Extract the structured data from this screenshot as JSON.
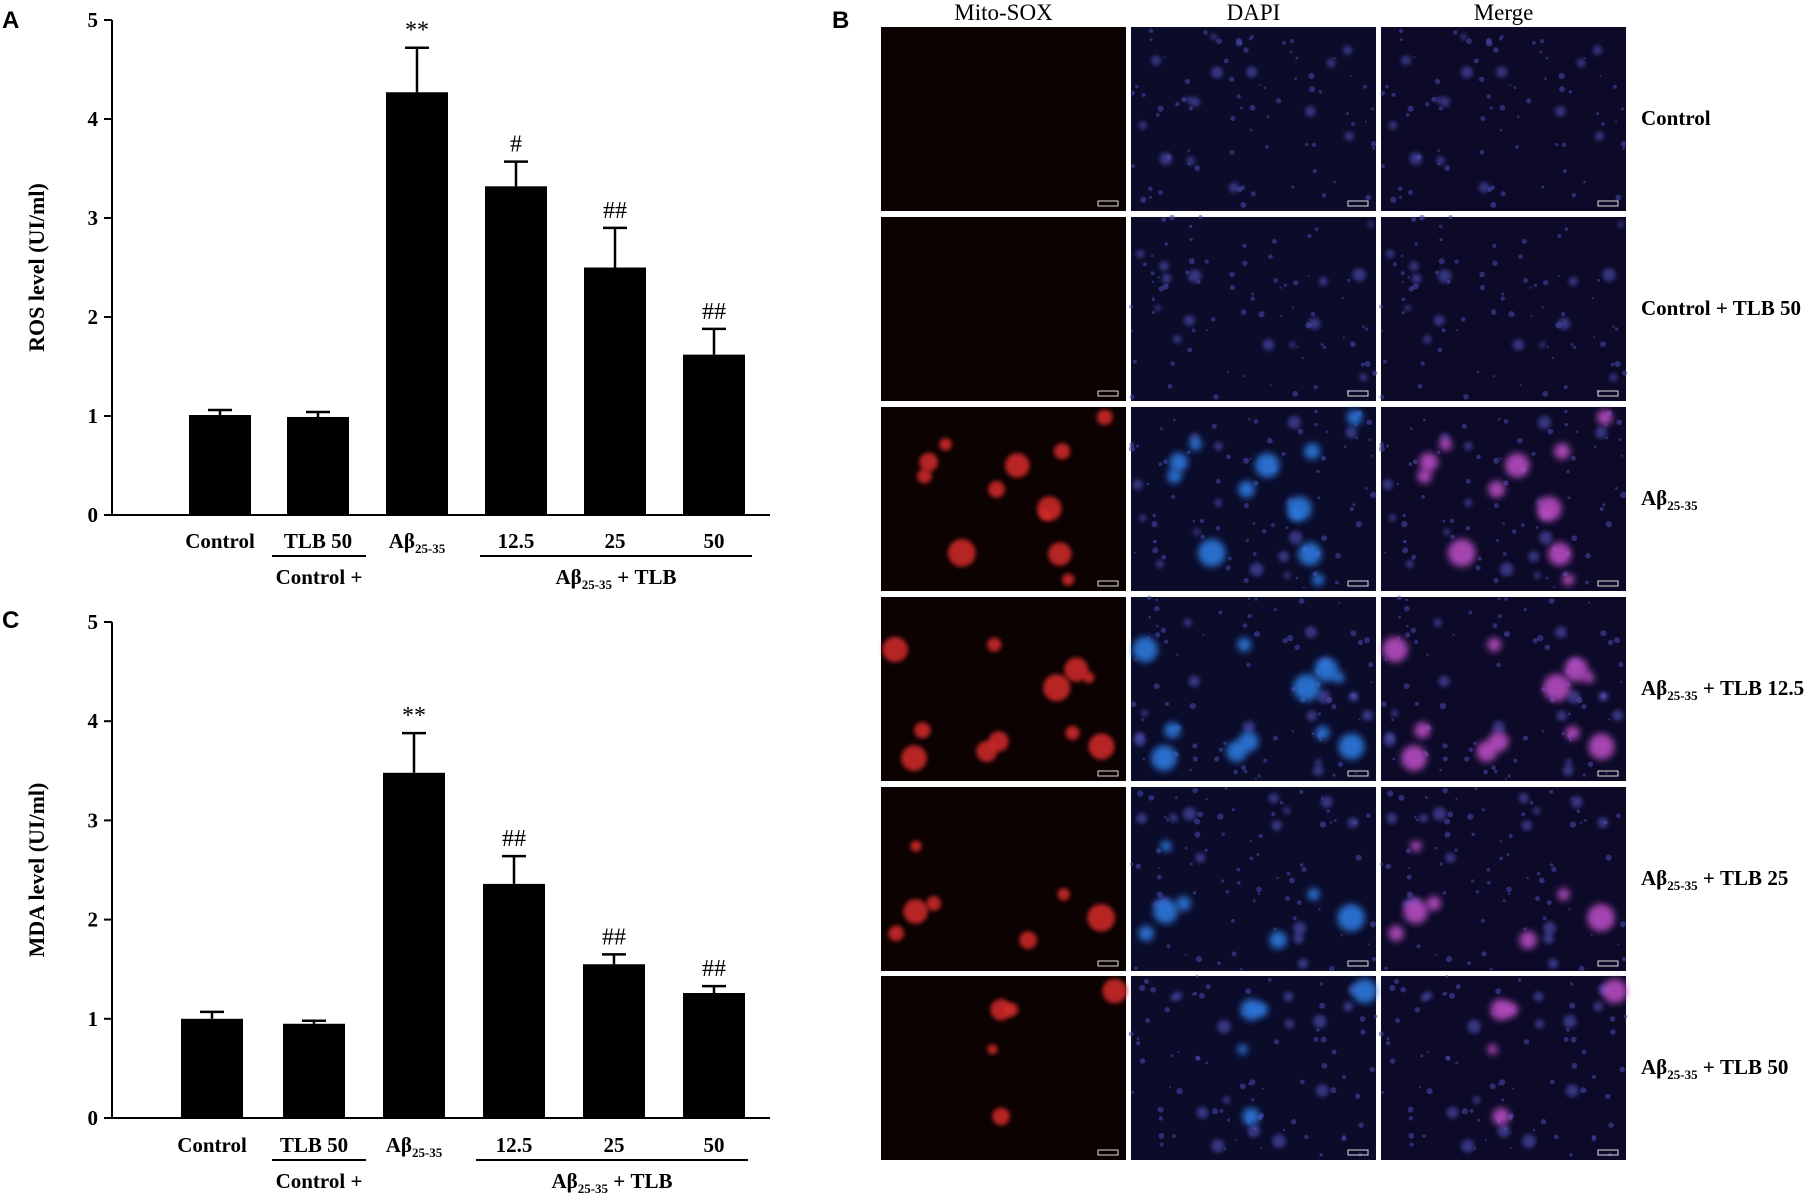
{
  "panels": {
    "A": "A",
    "B": "B",
    "C": "C"
  },
  "chart_data": [
    {
      "panel": "A",
      "type": "bar",
      "categories": [
        "Control",
        "TLB 50",
        "Aβ25-35",
        "12.5",
        "25",
        "50"
      ],
      "category_labels": [
        {
          "main": "Control",
          "sub": ""
        },
        {
          "main": "TLB 50",
          "sub": ""
        },
        {
          "main": "Aβ",
          "sub": "25-35"
        },
        {
          "main": "12.5",
          "sub": ""
        },
        {
          "main": "25",
          "sub": ""
        },
        {
          "main": "50",
          "sub": ""
        }
      ],
      "values": [
        1.01,
        0.99,
        4.27,
        3.32,
        2.5,
        1.62
      ],
      "errors": [
        0.05,
        0.05,
        0.45,
        0.25,
        0.4,
        0.26
      ],
      "annotations": [
        "",
        "",
        "**",
        "#",
        "##",
        "##"
      ],
      "ylabel": "ROS level (UI/ml)",
      "ylim": [
        0,
        5
      ],
      "yticks": [
        "0",
        "1",
        "2",
        "3",
        "4",
        "5"
      ],
      "group_labels": [
        {
          "main": "Control +",
          "sub": "",
          "rest": ""
        },
        {
          "main": "Aβ",
          "sub": "25-35",
          "rest": " + TLB"
        }
      ],
      "bar_color": "#000000"
    },
    {
      "panel": "C",
      "type": "bar",
      "categories": [
        "Control",
        "TLB 50",
        "Aβ25-35",
        "12.5",
        "25",
        "50"
      ],
      "category_labels": [
        {
          "main": "Control",
          "sub": ""
        },
        {
          "main": "TLB 50",
          "sub": ""
        },
        {
          "main": "Aβ",
          "sub": "25-35"
        },
        {
          "main": "12.5",
          "sub": ""
        },
        {
          "main": "25",
          "sub": ""
        },
        {
          "main": "50",
          "sub": ""
        }
      ],
      "values": [
        1.0,
        0.95,
        3.48,
        2.36,
        1.55,
        1.26
      ],
      "errors": [
        0.07,
        0.03,
        0.4,
        0.28,
        0.1,
        0.07
      ],
      "annotations": [
        "",
        "",
        "**",
        "##",
        "##",
        "##"
      ],
      "ylabel": "MDA level (UI/ml)",
      "ylim": [
        0,
        5
      ],
      "yticks": [
        "0",
        "1",
        "2",
        "3",
        "4",
        "5"
      ],
      "group_labels": [
        {
          "main": "Control +",
          "sub": "",
          "rest": ""
        },
        {
          "main": "Aβ",
          "sub": "25-35",
          "rest": " + TLB"
        }
      ],
      "bar_color": "#000000"
    }
  ],
  "microscopy": {
    "columns": [
      "Mito-SOX",
      "DAPI",
      "Merge"
    ],
    "rows": [
      {
        "main": "Control",
        "sub": "",
        "rest": ""
      },
      {
        "main": "Control + TLB 50",
        "sub": "",
        "rest": ""
      },
      {
        "main": "Aβ",
        "sub": "25-35",
        "rest": ""
      },
      {
        "main": "Aβ",
        "sub": "25-35",
        "rest": " + TLB 12.5"
      },
      {
        "main": "Aβ",
        "sub": "25-35",
        "rest": " + TLB 25"
      },
      {
        "main": "Aβ",
        "sub": "25-35",
        "rest": " + TLB 50"
      }
    ],
    "channel_colors": {
      "mito_sox_bg": "#0c0202",
      "mito_sox_signal": "#d42a2a",
      "dapi_bg": "#0b0b2a",
      "dapi_signal": "#2f7fe6",
      "merge_bg": "#0c0a28",
      "merge_signal": "#c050c8"
    },
    "signal_level": [
      0.0,
      0.0,
      1.0,
      0.9,
      0.6,
      0.4
    ]
  }
}
